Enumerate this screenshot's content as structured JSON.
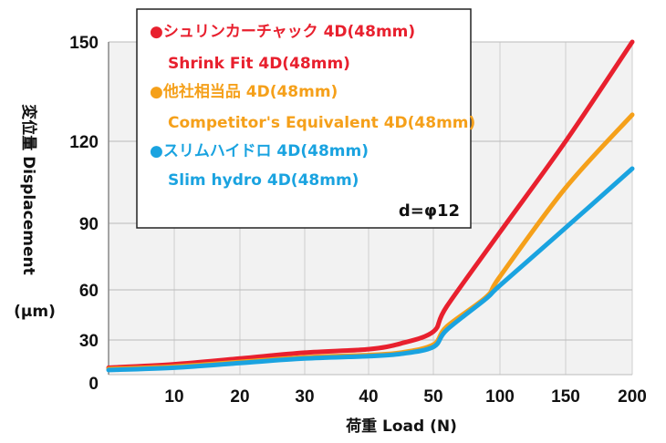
{
  "chart_data": {
    "type": "line",
    "xlabel": "荷重 Load (N)",
    "ylabel_lines": [
      "変位量 Displacement",
      "(μm)"
    ],
    "x_ticks": [
      "10",
      "20",
      "30",
      "40",
      "50",
      "100",
      "150",
      "200"
    ],
    "y_ticks": [
      0,
      30,
      60,
      90,
      120,
      150
    ],
    "ylim": [
      0,
      150
    ],
    "grid": true,
    "legend_position": "top-left",
    "note": "d=φ12",
    "series": [
      {
        "name": "シュリンカーチャック 4D(48mm)",
        "name_en": "Shrink Fit 4D(48mm)",
        "color": "#e8202e",
        "points": [
          [
            0,
            6
          ],
          [
            10,
            9
          ],
          [
            20,
            14
          ],
          [
            30,
            19
          ],
          [
            40,
            22
          ],
          [
            45,
            27
          ],
          [
            50,
            35
          ],
          [
            60,
            50
          ],
          [
            100,
            86
          ],
          [
            150,
            120
          ],
          [
            200,
            150
          ]
        ]
      },
      {
        "name": "他社相当品 4D(48mm)",
        "name_en": "Competitor's Equivalent  4D(48mm)",
        "color": "#f5a01a",
        "points": [
          [
            0,
            5
          ],
          [
            10,
            7
          ],
          [
            20,
            11
          ],
          [
            30,
            15
          ],
          [
            40,
            17
          ],
          [
            45,
            19
          ],
          [
            50,
            26
          ],
          [
            60,
            38
          ],
          [
            90,
            56
          ],
          [
            100,
            66
          ],
          [
            150,
            103
          ],
          [
            200,
            128
          ]
        ]
      },
      {
        "name": "スリムハイドロ 4D(48mm)",
        "name_en": "Slim hydro 4D(48mm)",
        "color": "#1aa3e0",
        "points": [
          [
            0,
            4
          ],
          [
            10,
            6
          ],
          [
            20,
            10
          ],
          [
            30,
            14
          ],
          [
            40,
            16
          ],
          [
            45,
            18
          ],
          [
            50,
            24
          ],
          [
            60,
            36
          ],
          [
            90,
            55
          ],
          [
            100,
            62
          ],
          [
            150,
            88
          ],
          [
            200,
            110
          ]
        ]
      }
    ]
  }
}
